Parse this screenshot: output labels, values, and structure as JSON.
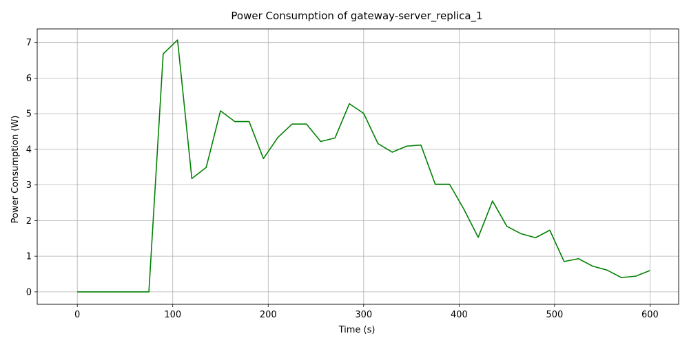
{
  "chart_data": {
    "type": "line",
    "title": "Power Consumption of gateway-server_replica_1",
    "xlabel": "Time (s)",
    "ylabel": "Power Consumption (W)",
    "xlim": [
      -42,
      630
    ],
    "ylim": [
      -0.35,
      7.38
    ],
    "xticks": [
      0,
      100,
      200,
      300,
      400,
      500,
      600
    ],
    "yticks": [
      0,
      1,
      2,
      3,
      4,
      5,
      6,
      7
    ],
    "grid": true,
    "series": [
      {
        "color": "#008000",
        "x": [
          0,
          15,
          30,
          45,
          60,
          75,
          90,
          105,
          120,
          135,
          150,
          165,
          180,
          195,
          210,
          225,
          240,
          255,
          270,
          285,
          300,
          315,
          330,
          345,
          360,
          375,
          390,
          405,
          420,
          435,
          450,
          465,
          480,
          495,
          510,
          525,
          540,
          555,
          570,
          585,
          600
        ],
        "y": [
          0,
          0,
          0,
          0,
          0,
          0,
          6.68,
          7.07,
          3.18,
          3.49,
          5.08,
          4.78,
          4.78,
          3.74,
          4.33,
          4.71,
          4.71,
          4.22,
          4.32,
          5.28,
          5.01,
          4.16,
          3.92,
          4.09,
          4.12,
          3.02,
          3.02,
          2.32,
          1.53,
          2.55,
          1.84,
          1.63,
          1.52,
          1.73,
          0.85,
          0.93,
          0.72,
          0.61,
          0.4,
          0.44,
          0.6
        ]
      }
    ]
  }
}
